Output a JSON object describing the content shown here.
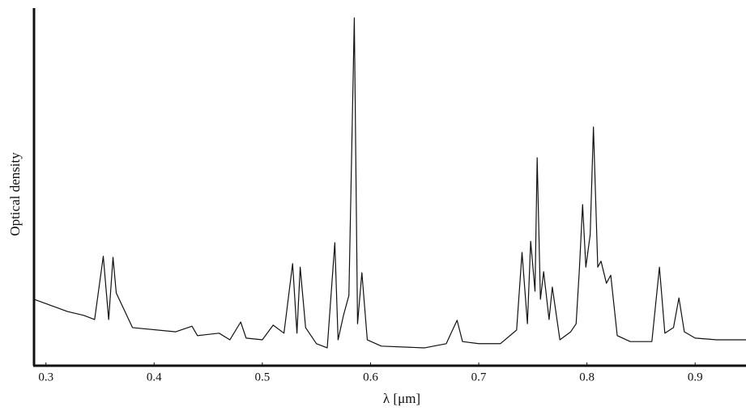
{
  "chart_data": {
    "type": "line",
    "xlabel": "λ [μm]",
    "ylabel": "Optical density",
    "xlim": [
      0.289,
      0.947
    ],
    "ylim": [
      0,
      100
    ],
    "xticks": [
      0.3,
      0.4,
      0.5,
      0.6,
      0.7,
      0.8,
      0.9
    ],
    "color": "#111111",
    "x": [
      0.289,
      0.32,
      0.335,
      0.345,
      0.353,
      0.358,
      0.362,
      0.365,
      0.38,
      0.42,
      0.435,
      0.44,
      0.46,
      0.47,
      0.48,
      0.485,
      0.5,
      0.51,
      0.52,
      0.528,
      0.532,
      0.535,
      0.54,
      0.55,
      0.56,
      0.567,
      0.57,
      0.575,
      0.58,
      0.585,
      0.588,
      0.592,
      0.597,
      0.61,
      0.65,
      0.67,
      0.675,
      0.68,
      0.685,
      0.7,
      0.72,
      0.735,
      0.74,
      0.745,
      0.748,
      0.752,
      0.754,
      0.757,
      0.76,
      0.765,
      0.768,
      0.775,
      0.785,
      0.79,
      0.793,
      0.796,
      0.799,
      0.803,
      0.806,
      0.81,
      0.813,
      0.818,
      0.822,
      0.828,
      0.84,
      0.86,
      0.867,
      0.872,
      0.88,
      0.885,
      0.89,
      0.9,
      0.92,
      0.947
    ],
    "values": [
      19.0,
      15.5,
      14.4,
      13.2,
      31.3,
      13.2,
      31.0,
      20.8,
      10.9,
      9.7,
      11.3,
      8.6,
      9.3,
      7.4,
      12.5,
      7.9,
      7.4,
      11.6,
      9.3,
      29.2,
      9.3,
      28.2,
      10.9,
      6.3,
      5.1,
      35.2,
      7.4,
      14.4,
      20.1,
      99.5,
      12.0,
      26.6,
      7.4,
      5.6,
      5.1,
      6.3,
      9.7,
      13.0,
      6.9,
      6.3,
      6.3,
      10.2,
      32.4,
      12.0,
      35.6,
      21.3,
      59.5,
      19.0,
      26.9,
      13.2,
      22.5,
      7.4,
      9.7,
      12.0,
      27.5,
      46.1,
      28.2,
      37.5,
      68.3,
      28.2,
      29.9,
      23.6,
      25.9,
      8.6,
      6.9,
      6.9,
      28.2,
      9.3,
      10.9,
      19.4,
      9.7,
      7.9,
      7.4,
      7.4
    ]
  }
}
